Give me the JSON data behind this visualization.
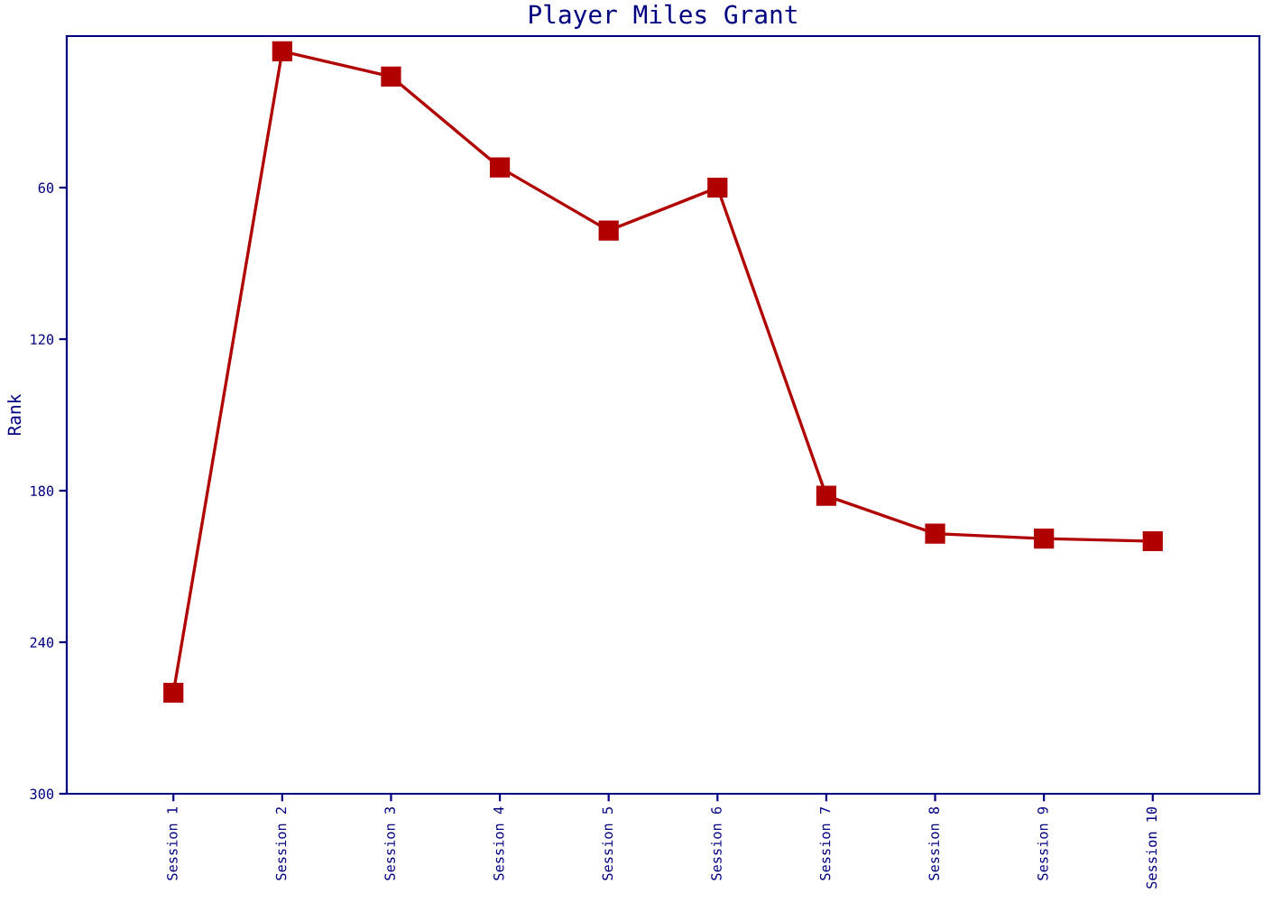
{
  "chart_data": {
    "type": "line",
    "title": "Player Miles Grant",
    "ylabel": "Rank",
    "categories": [
      "Session 1",
      "Session 2",
      "Session 3",
      "Session 4",
      "Session 5",
      "Session 6",
      "Session 7",
      "Session 8",
      "Session 9",
      "Session 10"
    ],
    "series": [
      {
        "color": "#b00000",
        "values": [
          260,
          6,
          16,
          52,
          77,
          60,
          182,
          197,
          199,
          200
        ]
      }
    ],
    "ylim": [
      300,
      0
    ],
    "yticks": [
      60,
      120,
      180,
      240,
      300
    ],
    "grid": false,
    "marker": "square",
    "line_style": "solid"
  }
}
